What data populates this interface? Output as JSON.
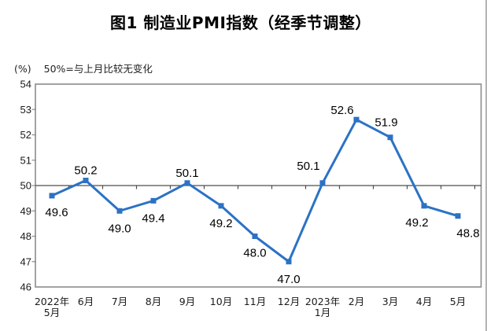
{
  "figure": {
    "title": "图1 制造业PMI指数（经季节调整）",
    "unit_label": "(%)",
    "note": "50%=与上月比较无变化"
  },
  "chart_data": {
    "type": "line",
    "title": "图1 制造业PMI指数（经季节调整）",
    "subtitle": "50%=与上月比较无变化",
    "ylabel": "(%)",
    "categories": [
      "2022年\n5月",
      "6月",
      "7月",
      "8月",
      "9月",
      "10月",
      "11月",
      "12月",
      "2023年\n1月",
      "2月",
      "3月",
      "4月",
      "5月"
    ],
    "values": [
      49.6,
      50.2,
      49.0,
      49.4,
      50.1,
      49.2,
      48.0,
      47.0,
      50.1,
      52.6,
      51.9,
      49.2,
      48.8
    ],
    "series_name": "制造业PMI",
    "ylim": [
      46,
      54
    ],
    "ytick_step": 1,
    "reference_line": 50,
    "grid": false,
    "legend": "none",
    "colors": {
      "line": "#2B72C5",
      "marker": "#2B72C5",
      "axis_border": "#8c8c8c",
      "reference_line": "#4d4d4d",
      "label_text": "#000000",
      "tick_text": "#1a1a1a",
      "page_edge": "#b3b3b3"
    }
  }
}
